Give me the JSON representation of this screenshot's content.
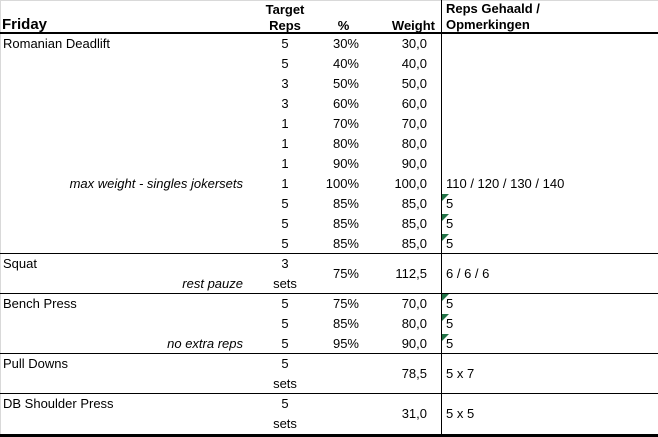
{
  "sheet": {
    "day": "Friday",
    "columns": {
      "target_line1": "Target",
      "target_line2": "Reps",
      "percent": "%",
      "weight": "Weight",
      "result_line1": "Reps Gehaald /",
      "result_line2": "Opmerkingen"
    },
    "colors": {
      "flag_green": "#217346",
      "grid_gray": "#d9d9d9",
      "border_black": "#000000"
    },
    "icons": {
      "error_flag": "green-corner-triangle"
    },
    "rows": [
      {
        "name": "Romanian Deadlift",
        "reps": "5",
        "pct": "30%",
        "weight": "30,0"
      },
      {
        "reps": "5",
        "pct": "40%",
        "weight": "40,0"
      },
      {
        "reps": "3",
        "pct": "50%",
        "weight": "50,0"
      },
      {
        "reps": "3",
        "pct": "60%",
        "weight": "60,0"
      },
      {
        "reps": "1",
        "pct": "70%",
        "weight": "70,0"
      },
      {
        "reps": "1",
        "pct": "80%",
        "weight": "80,0"
      },
      {
        "reps": "1",
        "pct": "90%",
        "weight": "90,0"
      },
      {
        "note": "max weight - singles jokersets",
        "reps": "1",
        "pct": "100%",
        "weight": "100,0",
        "result": "110 / 120 / 130 / 140"
      },
      {
        "reps": "5",
        "pct": "85%",
        "weight": "85,0",
        "result": "5",
        "flag": true
      },
      {
        "reps": "5",
        "pct": "85%",
        "weight": "85,0",
        "result": "5",
        "flag": true
      },
      {
        "reps": "5",
        "pct": "85%",
        "weight": "85,0",
        "result": "5",
        "flag": true
      },
      {
        "name": "Squat",
        "reps": "3",
        "pct": "75%",
        "weight": "112,5",
        "result": "6 / 6 / 6",
        "span2": [
          "pct",
          "weight",
          "result"
        ],
        "sep": true
      },
      {
        "note": "rest pauze",
        "reps": "sets"
      },
      {
        "name": "Bench Press",
        "reps": "5",
        "pct": "75%",
        "weight": "70,0",
        "result": "5",
        "flag": true,
        "sep": true
      },
      {
        "reps": "5",
        "pct": "85%",
        "weight": "80,0",
        "result": "5",
        "flag": true
      },
      {
        "note": "no extra reps",
        "reps": "5",
        "pct": "95%",
        "weight": "90,0",
        "result": "5",
        "flag": true
      },
      {
        "name": "Pull Downs",
        "reps": "5",
        "weight": "78,5",
        "result": "5 x 7",
        "span2": [
          "weight",
          "result"
        ],
        "sep": true
      },
      {
        "reps": "sets"
      },
      {
        "name": "DB Shoulder Press",
        "reps": "5",
        "weight": "31,0",
        "result": "5 x 5",
        "span2": [
          "weight",
          "result"
        ],
        "sep": true
      },
      {
        "reps": "sets"
      }
    ]
  }
}
